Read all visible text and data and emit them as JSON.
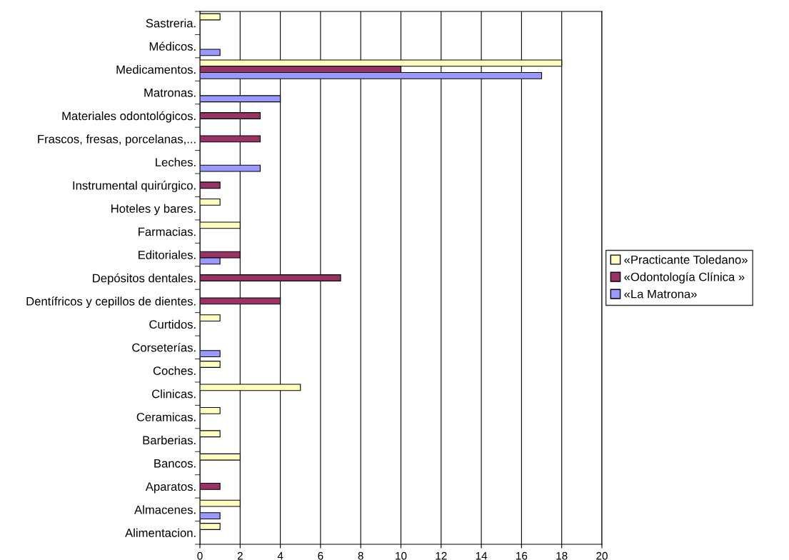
{
  "chart_data": {
    "type": "bar",
    "orientation": "horizontal",
    "categories": [
      "Sastreria.",
      "Médicos.",
      "Medicamentos.",
      "Matronas.",
      "Materiales odontológicos.",
      "Frascos, fresas, porcelanas,...",
      "Leches.",
      "Instrumental quirúrgico.",
      "Hoteles y bares.",
      "Farmacias.",
      "Editoriales.",
      "Depósitos dentales.",
      "Dentífricos y cepillos de dientes.",
      "Curtidos.",
      "Corseterías.",
      "Coches.",
      "Clinicas.",
      "Ceramicas.",
      "Barberias.",
      "Bancos.",
      "Aparatos.",
      "Almacenes.",
      "Alimentacion."
    ],
    "series": [
      {
        "name": "«Practicante Toledano»",
        "color": "#ffffc0",
        "values": [
          1,
          null,
          18,
          null,
          null,
          null,
          null,
          null,
          1,
          2,
          null,
          null,
          null,
          1,
          null,
          1,
          5,
          1,
          1,
          2,
          null,
          2,
          1
        ]
      },
      {
        "name": "«Odontología Clínica »",
        "color": "#993366",
        "values": [
          null,
          null,
          10,
          null,
          3,
          3,
          null,
          1,
          null,
          null,
          2,
          7,
          4,
          null,
          null,
          null,
          null,
          null,
          null,
          null,
          1,
          null,
          null
        ]
      },
      {
        "name": "«La Matrona»",
        "color": "#9999ff",
        "values": [
          null,
          1,
          17,
          4,
          null,
          null,
          3,
          null,
          null,
          null,
          1,
          null,
          null,
          null,
          1,
          null,
          null,
          null,
          null,
          null,
          null,
          1,
          null
        ]
      }
    ],
    "xlim": [
      0,
      20
    ],
    "xticks": [
      0,
      2,
      4,
      6,
      8,
      10,
      12,
      14,
      16,
      18,
      20
    ],
    "grid": "x",
    "legend": "right"
  }
}
